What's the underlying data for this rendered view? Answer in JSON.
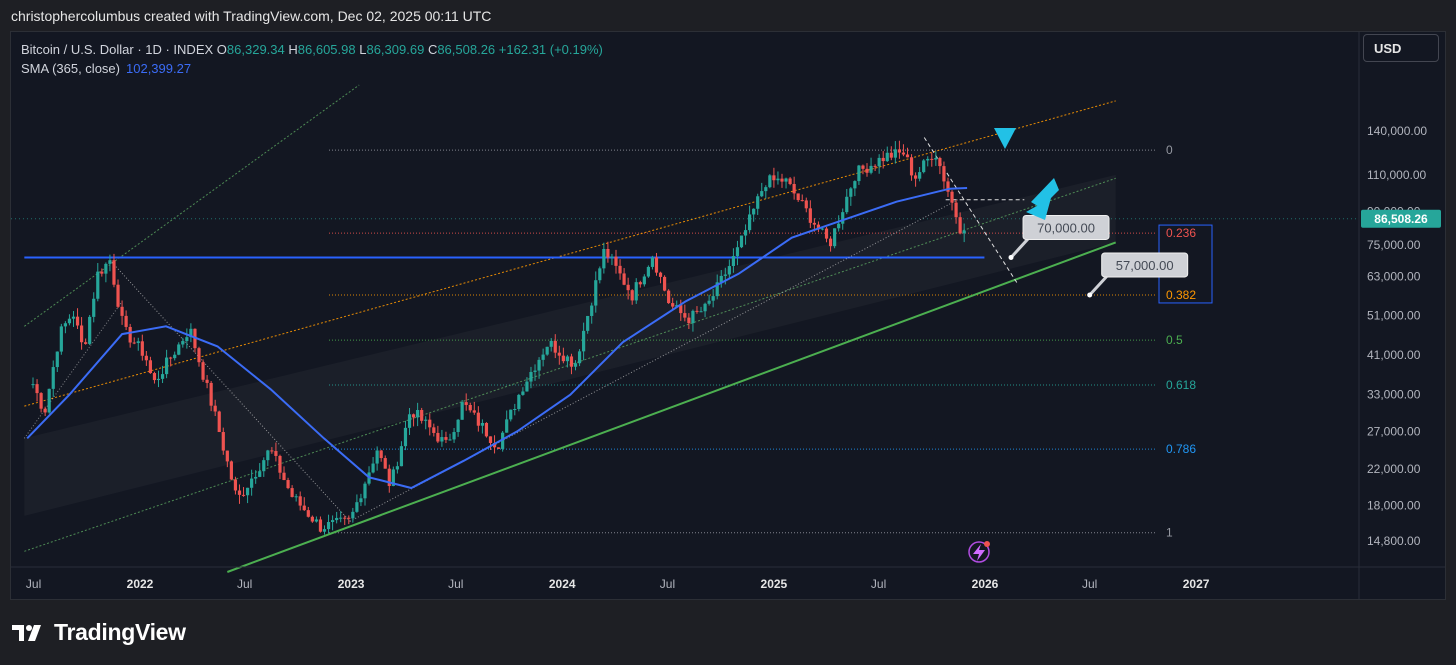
{
  "header": {
    "attribution": "christophercolumbus created with TradingView.com, Dec 02, 2025 00:11 UTC"
  },
  "legend": {
    "symbol": "Bitcoin / U.S. Dollar · 1D · INDEX",
    "open_label": "O",
    "open": "86,329.34",
    "high_label": "H",
    "high": "86,605.98",
    "low_label": "L",
    "low": "86,309.69",
    "close_label": "C",
    "close": "86,508.26",
    "change": "+162.31 (+0.19%)",
    "sma_label": "SMA (365, close)",
    "sma_value": "102,399.27"
  },
  "currency_button": {
    "label": "USD"
  },
  "footer": {
    "brand": "TradingView"
  },
  "colors": {
    "background": "#131722",
    "up": "#26a69a",
    "down": "#ef5350",
    "sma": "#3b6cf6",
    "support": "#4caf50",
    "channel_orange": "#ff9800",
    "channel_green": "#66bb6a",
    "resistance": "#2962ff",
    "callout": "#cfd1d6",
    "arrow": "#22c1e6"
  },
  "icons": [
    "tradingview-logo-icon",
    "lightning-icon"
  ],
  "chart_data": {
    "type": "candlestick",
    "scale": "log",
    "x_ticks": [
      "Jul",
      "2022",
      "Jul",
      "2023",
      "Jul",
      "2024",
      "Jul",
      "2025",
      "Jul",
      "2026",
      "Jul",
      "2027"
    ],
    "y_ticks": [
      "140,000.00",
      "110,000.00",
      "90,000.00",
      "75,000.00",
      "63,000.00",
      "51,000.00",
      "41,000.00",
      "33,000.00",
      "27,000.00",
      "22,000.00",
      "18,000.00",
      "14,800.00"
    ],
    "ylim": [
      12500,
      185000
    ],
    "last_price": {
      "value": 86508.26,
      "label": "86,508.26"
    },
    "fibonacci": [
      {
        "label": "0",
        "value": 126000
      },
      {
        "label": "0.236",
        "value": 80000
      },
      {
        "label": "0.382",
        "value": 57000
      },
      {
        "label": "0.5",
        "value": 44500
      },
      {
        "label": "0.618",
        "value": 34800
      },
      {
        "label": "0.786",
        "value": 24500
      },
      {
        "label": "1",
        "value": 15500
      }
    ],
    "callouts": [
      {
        "label": "70,000.00",
        "value": 70000
      },
      {
        "label": "57,000.00",
        "value": 57000
      }
    ],
    "price_series": [
      [
        "2021-06-30",
        35000
      ],
      [
        "2021-07-20",
        30000
      ],
      [
        "2021-08-15",
        46000
      ],
      [
        "2021-09-07",
        52000
      ],
      [
        "2021-09-25",
        42000
      ],
      [
        "2021-10-20",
        64000
      ],
      [
        "2021-11-10",
        69000
      ],
      [
        "2021-12-04",
        47000
      ],
      [
        "2022-01-10",
        41000
      ],
      [
        "2022-01-24",
        35000
      ],
      [
        "2022-03-28",
        47500
      ],
      [
        "2022-05-12",
        29000
      ],
      [
        "2022-06-18",
        18500
      ],
      [
        "2022-08-14",
        24500
      ],
      [
        "2022-09-20",
        19000
      ],
      [
        "2022-11-09",
        16000
      ],
      [
        "2022-12-30",
        16500
      ],
      [
        "2023-02-15",
        24500
      ],
      [
        "2023-03-10",
        20000
      ],
      [
        "2023-04-14",
        30500
      ],
      [
        "2023-06-15",
        25000
      ],
      [
        "2023-07-13",
        31500
      ],
      [
        "2023-09-11",
        25000
      ],
      [
        "2023-10-24",
        34500
      ],
      [
        "2023-12-08",
        44000
      ],
      [
        "2024-01-23",
        39000
      ],
      [
        "2024-03-14",
        73000
      ],
      [
        "2024-05-01",
        57000
      ],
      [
        "2024-06-05",
        71000
      ],
      [
        "2024-07-05",
        54000
      ],
      [
        "2024-08-05",
        50000
      ],
      [
        "2024-09-06",
        53000
      ],
      [
        "2024-10-29",
        72000
      ],
      [
        "2024-12-17",
        106000
      ],
      [
        "2025-01-20",
        107000
      ],
      [
        "2025-04-07",
        75000
      ],
      [
        "2025-05-22",
        111000
      ],
      [
        "2025-07-14",
        122000
      ],
      [
        "2025-08-14",
        124000
      ],
      [
        "2025-09-01",
        108000
      ],
      [
        "2025-10-06",
        126000
      ],
      [
        "2025-11-21",
        81000
      ],
      [
        "2025-12-01",
        86508
      ]
    ],
    "sma_series": [
      [
        "2021-06-20",
        26000
      ],
      [
        "2021-09-01",
        33000
      ],
      [
        "2021-12-01",
        46000
      ],
      [
        "2022-02-15",
        48000
      ],
      [
        "2022-05-15",
        43000
      ],
      [
        "2022-08-15",
        34000
      ],
      [
        "2022-11-15",
        26000
      ],
      [
        "2023-02-01",
        21000
      ],
      [
        "2023-04-15",
        19800
      ],
      [
        "2023-07-15",
        23000
      ],
      [
        "2023-10-15",
        27000
      ],
      [
        "2024-01-15",
        33000
      ],
      [
        "2024-04-15",
        44000
      ],
      [
        "2024-08-01",
        55000
      ],
      [
        "2024-11-01",
        64000
      ],
      [
        "2025-02-01",
        78000
      ],
      [
        "2025-05-01",
        86000
      ],
      [
        "2025-08-01",
        95000
      ],
      [
        "2025-11-01",
        102000
      ],
      [
        "2025-12-01",
        102400
      ]
    ]
  }
}
